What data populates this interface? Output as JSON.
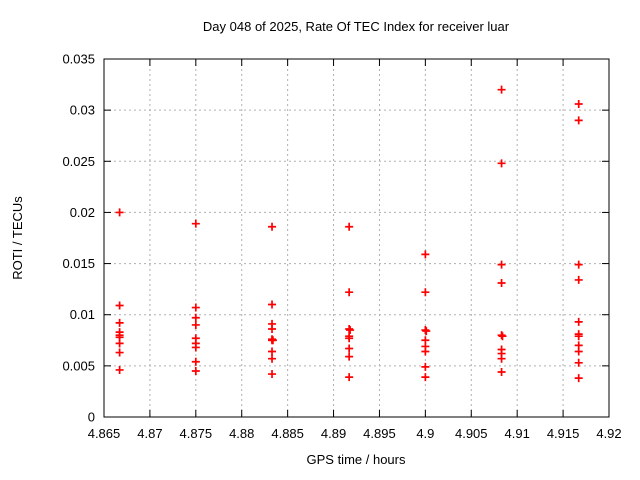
{
  "chart_data": {
    "type": "scatter",
    "title": "Day 048 of 2025, Rate Of TEC Index for receiver luar",
    "xlabel": "GPS time / hours",
    "ylabel": "ROTI / TECUs",
    "xlim": [
      4.865,
      4.92
    ],
    "ylim": [
      0,
      0.035
    ],
    "grid": true,
    "legend": "none",
    "marker": "plus",
    "marker_color": "#ff0000",
    "grid_color": "#b0b0b0",
    "axis_color": "#000000",
    "xticks": [
      4.865,
      4.87,
      4.875,
      4.88,
      4.885,
      4.89,
      4.895,
      4.9,
      4.905,
      4.91,
      4.915,
      4.92
    ],
    "xtick_labels": [
      "4.865",
      "4.87",
      "4.875",
      "4.88",
      "4.885",
      "4.89",
      "4.895",
      "4.9",
      "4.905",
      "4.91",
      "4.915",
      "4.92"
    ],
    "yticks": [
      0,
      0.005,
      0.01,
      0.015,
      0.02,
      0.025,
      0.03,
      0.035
    ],
    "ytick_labels": [
      "0",
      "0.005",
      "0.01",
      "0.015",
      "0.02",
      "0.025",
      "0.03",
      "0.035"
    ],
    "points": [
      [
        4.8667,
        0.02
      ],
      [
        4.8667,
        0.0109
      ],
      [
        4.8667,
        0.0092
      ],
      [
        4.8667,
        0.0083
      ],
      [
        4.8667,
        0.008
      ],
      [
        4.8667,
        0.0078
      ],
      [
        4.8667,
        0.0072
      ],
      [
        4.8667,
        0.0063
      ],
      [
        4.8667,
        0.0046
      ],
      [
        4.875,
        0.0189
      ],
      [
        4.875,
        0.0107
      ],
      [
        4.875,
        0.0097
      ],
      [
        4.875,
        0.009
      ],
      [
        4.875,
        0.0077
      ],
      [
        4.875,
        0.0072
      ],
      [
        4.875,
        0.0068
      ],
      [
        4.875,
        0.0054
      ],
      [
        4.875,
        0.0045
      ],
      [
        4.8833,
        0.0186
      ],
      [
        4.8833,
        0.011
      ],
      [
        4.8833,
        0.0091
      ],
      [
        4.8833,
        0.0086
      ],
      [
        4.8833,
        0.0076
      ],
      [
        4.8834,
        0.0075
      ],
      [
        4.8833,
        0.0075
      ],
      [
        4.8833,
        0.0064
      ],
      [
        4.8833,
        0.0057
      ],
      [
        4.8833,
        0.0042
      ],
      [
        4.8917,
        0.0186
      ],
      [
        4.8917,
        0.0122
      ],
      [
        4.8917,
        0.0086
      ],
      [
        4.8918,
        0.0085
      ],
      [
        4.8917,
        0.0079
      ],
      [
        4.8917,
        0.0077
      ],
      [
        4.8917,
        0.0067
      ],
      [
        4.8917,
        0.0059
      ],
      [
        4.8917,
        0.0039
      ],
      [
        4.9,
        0.0159
      ],
      [
        4.9,
        0.0122
      ],
      [
        4.9,
        0.0085
      ],
      [
        4.9001,
        0.0084
      ],
      [
        4.9,
        0.0075
      ],
      [
        4.9,
        0.0069
      ],
      [
        4.9,
        0.0064
      ],
      [
        4.9,
        0.0049
      ],
      [
        4.9,
        0.0039
      ],
      [
        4.9083,
        0.032
      ],
      [
        4.9083,
        0.0248
      ],
      [
        4.9083,
        0.0149
      ],
      [
        4.9083,
        0.0131
      ],
      [
        4.9083,
        0.008
      ],
      [
        4.9084,
        0.0079
      ],
      [
        4.9083,
        0.0066
      ],
      [
        4.9083,
        0.0062
      ],
      [
        4.9083,
        0.0057
      ],
      [
        4.9083,
        0.0044
      ],
      [
        4.9167,
        0.0306
      ],
      [
        4.9167,
        0.029
      ],
      [
        4.9167,
        0.0149
      ],
      [
        4.9167,
        0.0134
      ],
      [
        4.9167,
        0.0093
      ],
      [
        4.9167,
        0.0081
      ],
      [
        4.9167,
        0.0079
      ],
      [
        4.9167,
        0.007
      ],
      [
        4.9167,
        0.0064
      ],
      [
        4.9167,
        0.0053
      ],
      [
        4.9167,
        0.0038
      ]
    ]
  }
}
